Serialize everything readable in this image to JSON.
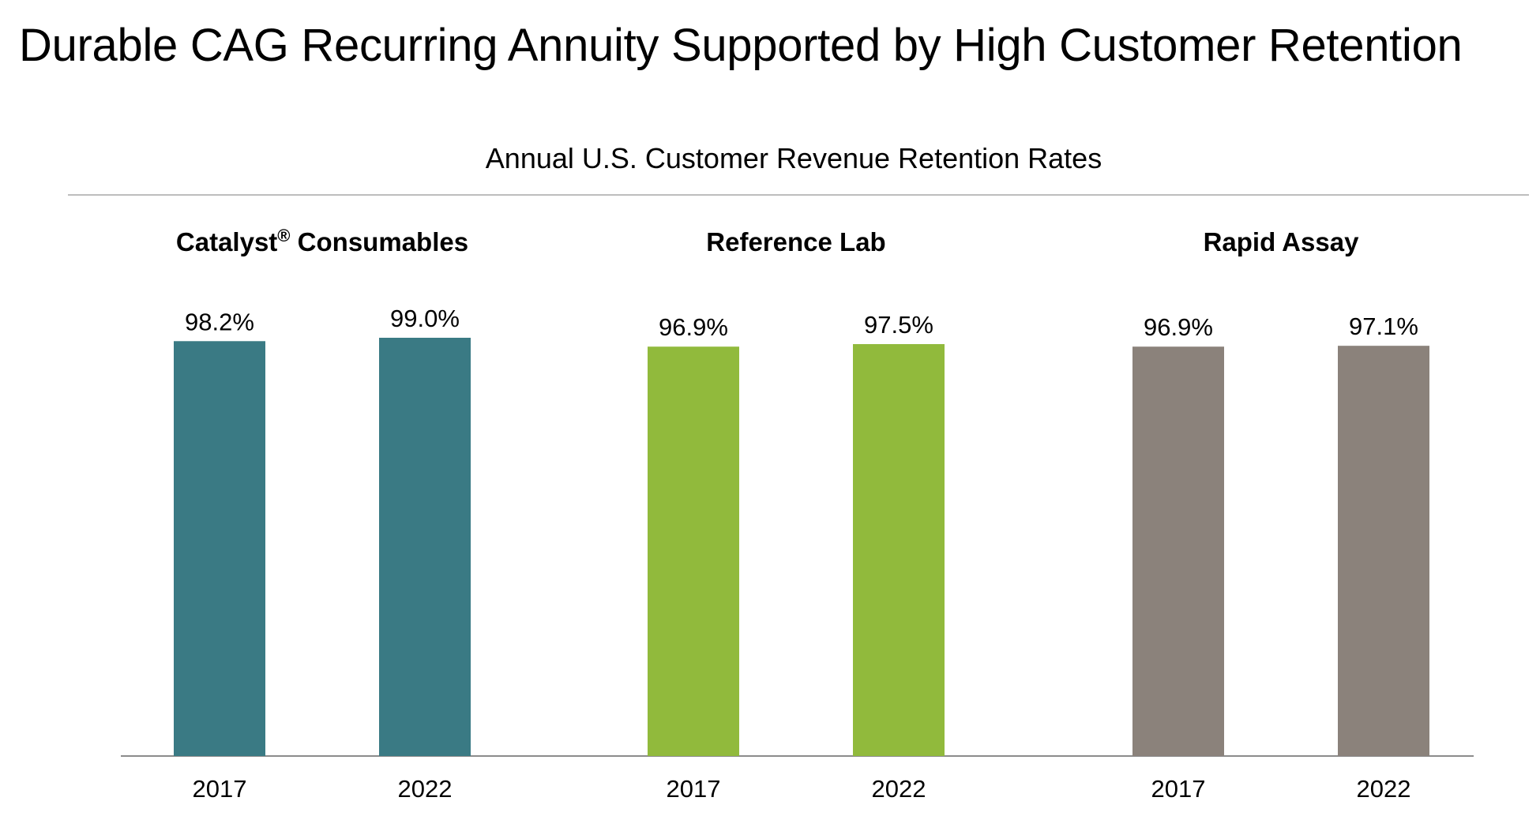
{
  "title": "Durable CAG Recurring Annuity Supported by High Customer Retention",
  "subtitle": "Annual U.S. Customer Revenue Retention Rates",
  "chart_data": [
    {
      "type": "bar",
      "title": "Catalyst® Consumables",
      "categories": [
        "2017",
        "2022"
      ],
      "values": [
        98.2,
        99.0
      ],
      "value_labels": [
        "98.2%",
        "99.0%"
      ],
      "color": "#3a7a84",
      "ylim": [
        0,
        100
      ],
      "xlabel": "",
      "ylabel": ""
    },
    {
      "type": "bar",
      "title": "Reference Lab",
      "categories": [
        "2017",
        "2022"
      ],
      "values": [
        96.9,
        97.5
      ],
      "value_labels": [
        "96.9%",
        "97.5%"
      ],
      "color": "#91ba3c",
      "ylim": [
        0,
        100
      ],
      "xlabel": "",
      "ylabel": ""
    },
    {
      "type": "bar",
      "title": "Rapid Assay",
      "categories": [
        "2017",
        "2022"
      ],
      "values": [
        96.9,
        97.1
      ],
      "value_labels": [
        "96.9%",
        "97.1%"
      ],
      "color": "#8b827b",
      "ylim": [
        0,
        100
      ],
      "xlabel": "",
      "ylabel": ""
    }
  ]
}
